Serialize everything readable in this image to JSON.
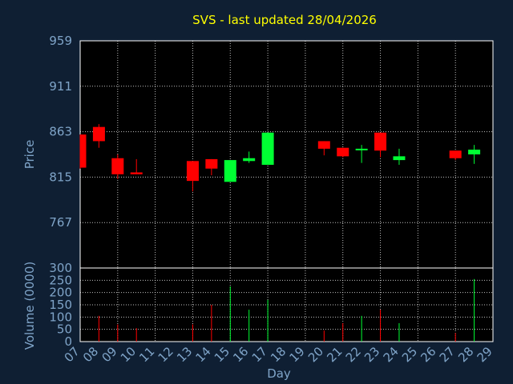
{
  "chart_data": {
    "type": "candlestick",
    "title": "SVS - last updated 28/04/2026",
    "xlabel": "Day",
    "price_panel": {
      "ylabel": "Price",
      "ylim": [
        719,
        959
      ],
      "yticks": [
        959,
        911,
        863,
        815,
        767
      ]
    },
    "volume_panel": {
      "ylabel": "Volume (0000)",
      "ylim": [
        0,
        300
      ],
      "yticks": [
        0,
        50,
        100,
        150,
        200,
        250,
        300
      ]
    },
    "x_ticks": [
      "07",
      "08",
      "09",
      "10",
      "11",
      "12",
      "13",
      "14",
      "15",
      "16",
      "17",
      "18",
      "19",
      "20",
      "21",
      "22",
      "23",
      "24",
      "25",
      "26",
      "27",
      "28",
      "29"
    ],
    "grid": true,
    "colors": {
      "up": "#00ff33",
      "down": "#ff0000",
      "background": "#0f1f33",
      "plot": "#000000",
      "title": "#ffff00",
      "axis_text": "#7fa4c8"
    },
    "candles": [
      {
        "day": "07",
        "open": 860,
        "high": 860,
        "low": 824,
        "close": 825
      },
      {
        "day": "08",
        "open": 868,
        "high": 871,
        "low": 846,
        "close": 853
      },
      {
        "day": "09",
        "open": 835,
        "high": 839,
        "low": 813,
        "close": 818
      },
      {
        "day": "10",
        "open": 820,
        "high": 834,
        "low": 818,
        "close": 818
      },
      {
        "day": "13",
        "open": 832,
        "high": 832,
        "low": 800,
        "close": 811
      },
      {
        "day": "14",
        "open": 834,
        "high": 834,
        "low": 817,
        "close": 824
      },
      {
        "day": "15",
        "open": 810,
        "high": 833,
        "low": 810,
        "close": 833
      },
      {
        "day": "16",
        "open": 832,
        "high": 842,
        "low": 830,
        "close": 835
      },
      {
        "day": "17",
        "open": 828,
        "high": 862,
        "low": 828,
        "close": 862
      },
      {
        "day": "20",
        "open": 853,
        "high": 853,
        "low": 838,
        "close": 845
      },
      {
        "day": "21",
        "open": 846,
        "high": 846,
        "low": 836,
        "close": 837
      },
      {
        "day": "22",
        "open": 844,
        "high": 849,
        "low": 830,
        "close": 845
      },
      {
        "day": "23",
        "open": 862,
        "high": 862,
        "low": 836,
        "close": 843
      },
      {
        "day": "24",
        "open": 833,
        "high": 845,
        "low": 828,
        "close": 837
      },
      {
        "day": "27",
        "open": 843,
        "high": 843,
        "low": 833,
        "close": 835
      },
      {
        "day": "28",
        "open": 839,
        "high": 849,
        "low": 829,
        "close": 844
      }
    ],
    "volume": [
      {
        "day": "08",
        "value": 105
      },
      {
        "day": "09",
        "value": 70
      },
      {
        "day": "10",
        "value": 55
      },
      {
        "day": "13",
        "value": 70
      },
      {
        "day": "14",
        "value": 150
      },
      {
        "day": "15",
        "value": 225
      },
      {
        "day": "16",
        "value": 130
      },
      {
        "day": "17",
        "value": 170
      },
      {
        "day": "20",
        "value": 45
      },
      {
        "day": "21",
        "value": 75
      },
      {
        "day": "22",
        "value": 105
      },
      {
        "day": "23",
        "value": 130
      },
      {
        "day": "24",
        "value": 75
      },
      {
        "day": "27",
        "value": 35
      },
      {
        "day": "28",
        "value": 255
      }
    ]
  }
}
